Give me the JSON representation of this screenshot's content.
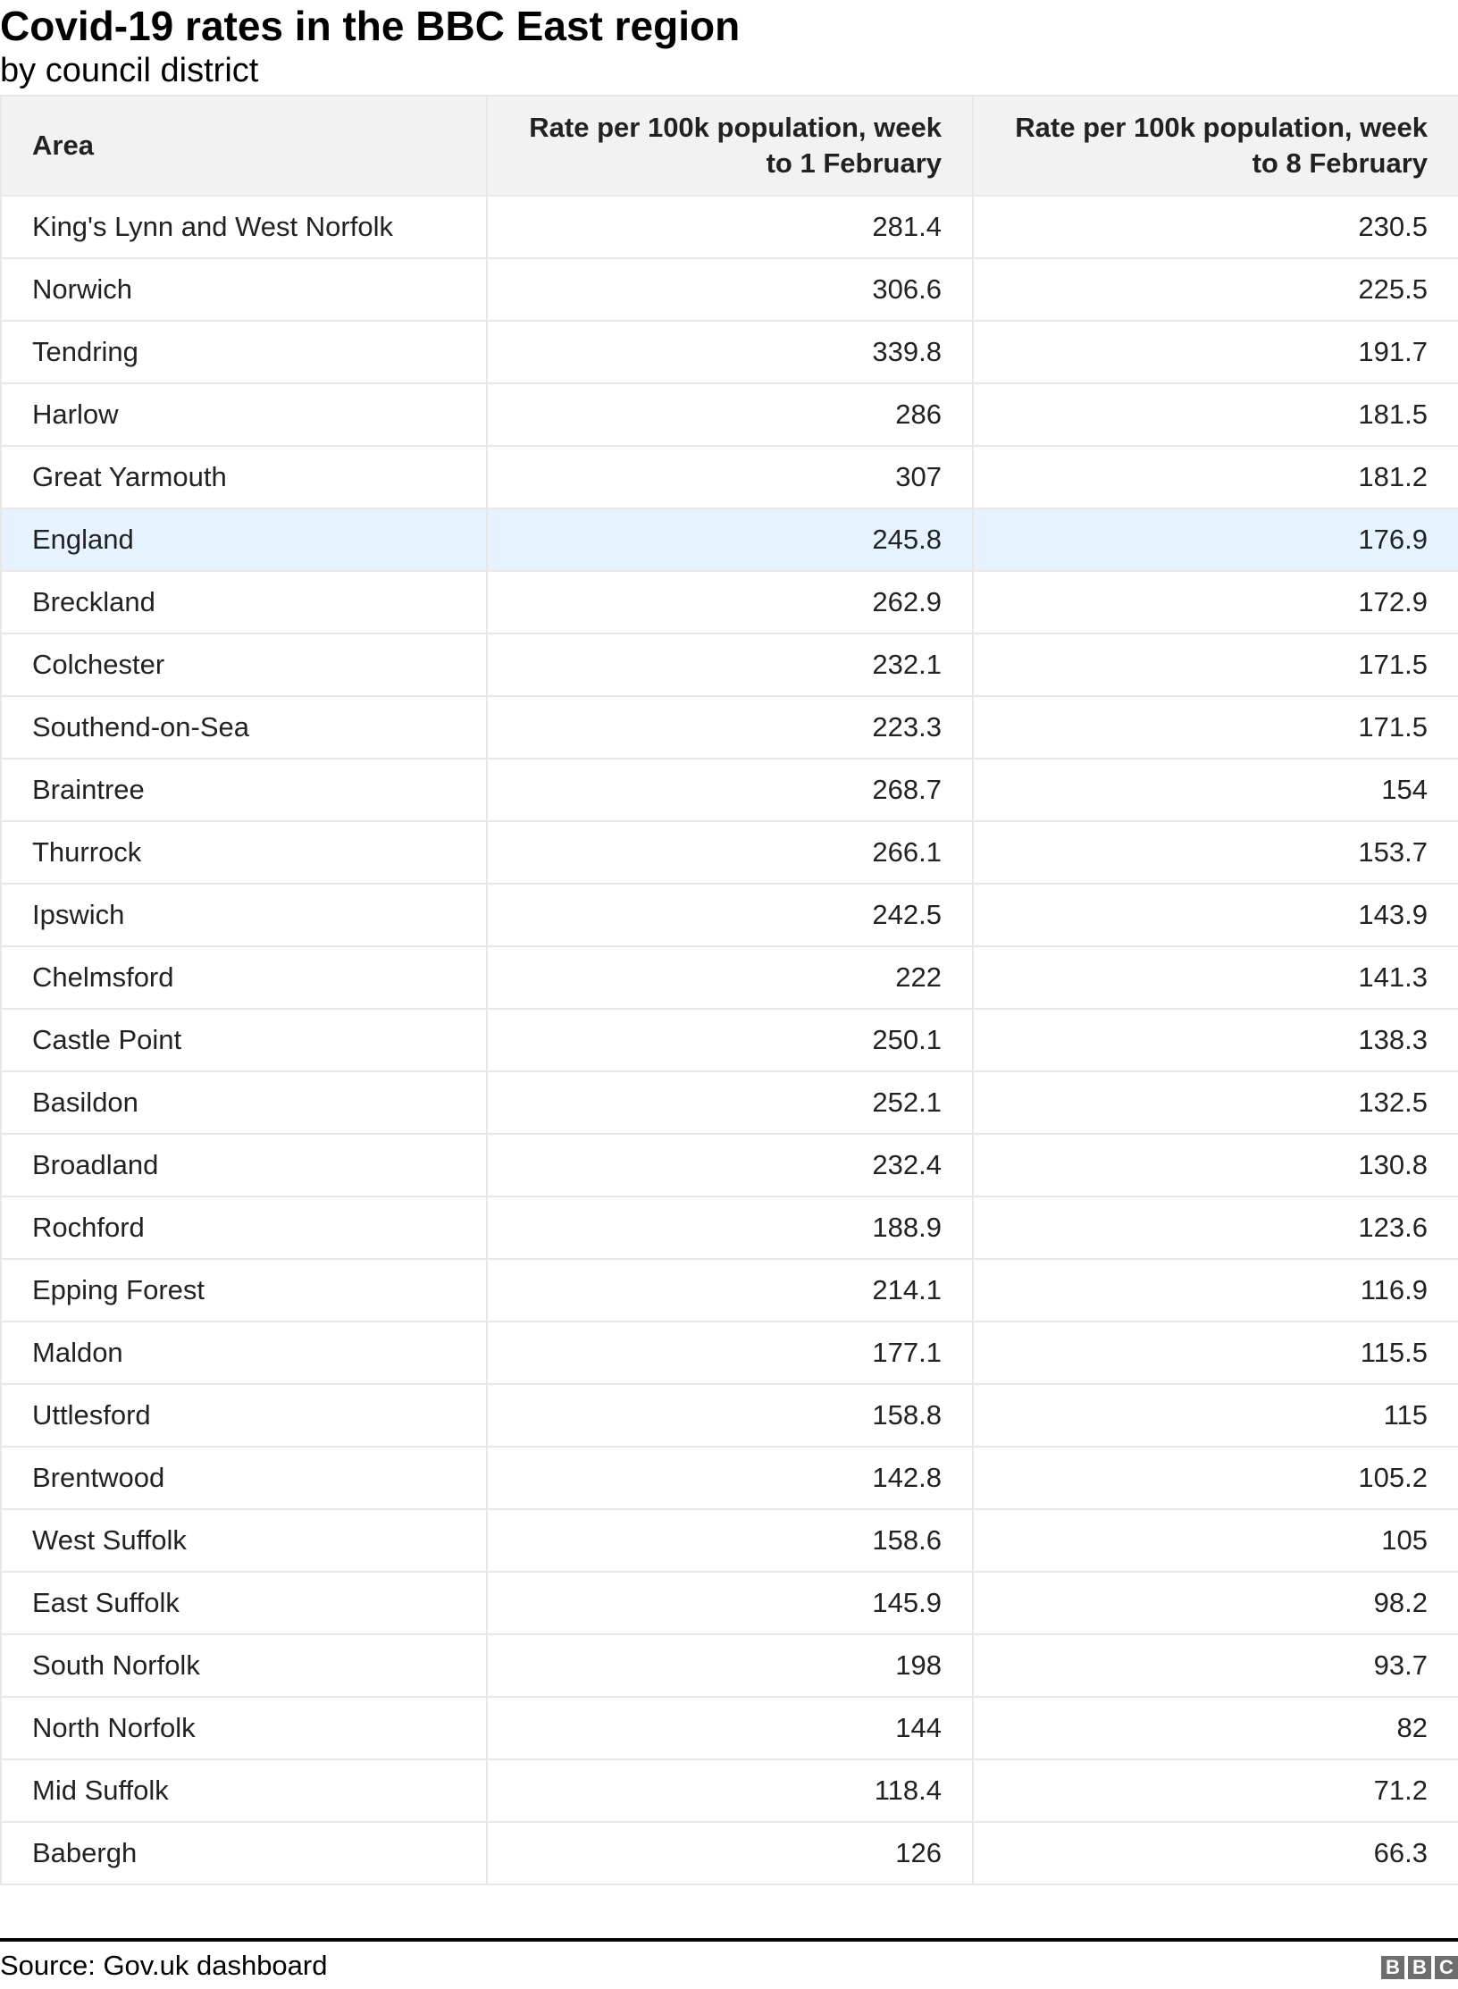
{
  "title": "Covid-19 rates in the BBC East region",
  "subtitle": "by council district",
  "table": {
    "headers": [
      "Area",
      "Rate per 100k population, week to 1 February",
      "Rate per 100k population, week to 8 February"
    ],
    "highlight_row": "England",
    "highlight_color": "#e6f3ff",
    "rows": [
      [
        "King's Lynn and West Norfolk",
        "281.4",
        "230.5"
      ],
      [
        "Norwich",
        "306.6",
        "225.5"
      ],
      [
        "Tendring",
        "339.8",
        "191.7"
      ],
      [
        "Harlow",
        "286",
        "181.5"
      ],
      [
        "Great Yarmouth",
        "307",
        "181.2"
      ],
      [
        "England",
        "245.8",
        "176.9"
      ],
      [
        "Breckland",
        "262.9",
        "172.9"
      ],
      [
        "Colchester",
        "232.1",
        "171.5"
      ],
      [
        "Southend-on-Sea",
        "223.3",
        "171.5"
      ],
      [
        "Braintree",
        "268.7",
        "154"
      ],
      [
        "Thurrock",
        "266.1",
        "153.7"
      ],
      [
        "Ipswich",
        "242.5",
        "143.9"
      ],
      [
        "Chelmsford",
        "222",
        "141.3"
      ],
      [
        "Castle Point",
        "250.1",
        "138.3"
      ],
      [
        "Basildon",
        "252.1",
        "132.5"
      ],
      [
        "Broadland",
        "232.4",
        "130.8"
      ],
      [
        "Rochford",
        "188.9",
        "123.6"
      ],
      [
        "Epping Forest",
        "214.1",
        "116.9"
      ],
      [
        "Maldon",
        "177.1",
        "115.5"
      ],
      [
        "Uttlesford",
        "158.8",
        "115"
      ],
      [
        "Brentwood",
        "142.8",
        "105.2"
      ],
      [
        "West Suffolk",
        "158.6",
        "105"
      ],
      [
        "East Suffolk",
        "145.9",
        "98.2"
      ],
      [
        "South Norfolk",
        "198",
        "93.7"
      ],
      [
        "North Norfolk",
        "144",
        "82"
      ],
      [
        "Mid Suffolk",
        "118.4",
        "71.2"
      ],
      [
        "Babergh",
        "126",
        "66.3"
      ]
    ]
  },
  "footer": {
    "source": "Source: Gov.uk dashboard",
    "logo": [
      "B",
      "B",
      "C"
    ]
  }
}
